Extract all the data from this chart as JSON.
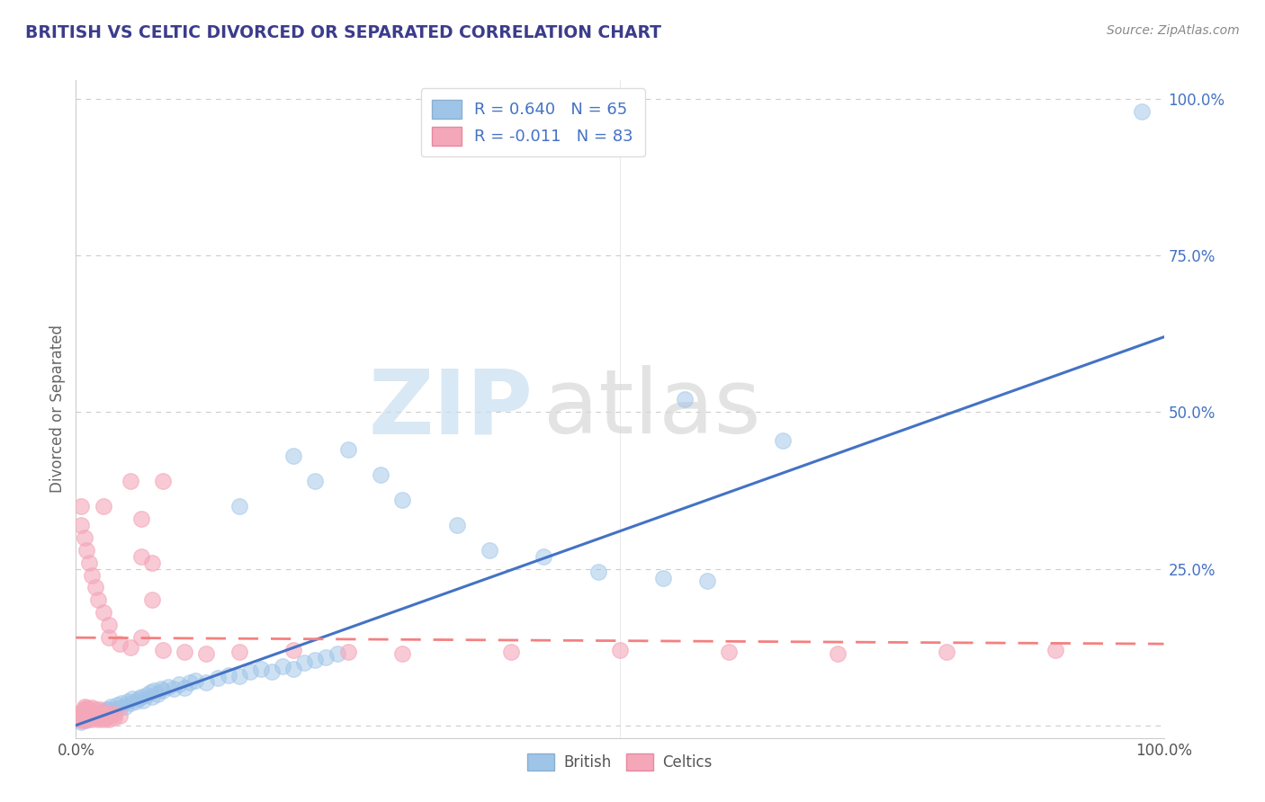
{
  "title": "BRITISH VS CELTIC DIVORCED OR SEPARATED CORRELATION CHART",
  "source": "Source: ZipAtlas.com",
  "ylabel": "Divorced or Separated",
  "title_color": "#3c3c8c",
  "source_color": "#888888",
  "axis_label_color": "#666666",
  "tick_color": "#4472c4",
  "grid_color": "#cccccc",
  "british_color": "#9ec4e8",
  "celtics_color": "#f4a7b9",
  "british_line_color": "#4472c4",
  "celtics_line_color": "#f48080",
  "R_british": 0.64,
  "N_british": 65,
  "R_celtics": -0.011,
  "N_celtics": 83,
  "xlim": [
    0.0,
    1.0
  ],
  "ylim": [
    0.0,
    1.0
  ],
  "ytick_positions": [
    0.0,
    0.25,
    0.5,
    0.75,
    1.0
  ],
  "british_line": [
    0.0,
    0.0,
    1.0,
    0.62
  ],
  "celtics_line": [
    0.0,
    0.14,
    1.0,
    0.13
  ],
  "british_scatter": [
    [
      0.005,
      0.005
    ],
    [
      0.008,
      0.01
    ],
    [
      0.01,
      0.008
    ],
    [
      0.012,
      0.012
    ],
    [
      0.015,
      0.015
    ],
    [
      0.015,
      0.02
    ],
    [
      0.018,
      0.018
    ],
    [
      0.02,
      0.015
    ],
    [
      0.022,
      0.02
    ],
    [
      0.025,
      0.022
    ],
    [
      0.028,
      0.025
    ],
    [
      0.03,
      0.02
    ],
    [
      0.03,
      0.025
    ],
    [
      0.032,
      0.03
    ],
    [
      0.035,
      0.025
    ],
    [
      0.038,
      0.032
    ],
    [
      0.04,
      0.028
    ],
    [
      0.042,
      0.035
    ],
    [
      0.045,
      0.03
    ],
    [
      0.048,
      0.038
    ],
    [
      0.05,
      0.035
    ],
    [
      0.052,
      0.042
    ],
    [
      0.055,
      0.038
    ],
    [
      0.058,
      0.042
    ],
    [
      0.06,
      0.045
    ],
    [
      0.062,
      0.04
    ],
    [
      0.065,
      0.048
    ],
    [
      0.068,
      0.052
    ],
    [
      0.07,
      0.045
    ],
    [
      0.072,
      0.055
    ],
    [
      0.075,
      0.05
    ],
    [
      0.078,
      0.058
    ],
    [
      0.08,
      0.055
    ],
    [
      0.085,
      0.062
    ],
    [
      0.09,
      0.058
    ],
    [
      0.095,
      0.065
    ],
    [
      0.1,
      0.06
    ],
    [
      0.105,
      0.068
    ],
    [
      0.11,
      0.072
    ],
    [
      0.12,
      0.068
    ],
    [
      0.13,
      0.075
    ],
    [
      0.14,
      0.08
    ],
    [
      0.15,
      0.078
    ],
    [
      0.16,
      0.085
    ],
    [
      0.17,
      0.09
    ],
    [
      0.18,
      0.085
    ],
    [
      0.19,
      0.095
    ],
    [
      0.2,
      0.09
    ],
    [
      0.21,
      0.1
    ],
    [
      0.22,
      0.105
    ],
    [
      0.23,
      0.108
    ],
    [
      0.24,
      0.115
    ],
    [
      0.15,
      0.35
    ],
    [
      0.2,
      0.43
    ],
    [
      0.22,
      0.39
    ],
    [
      0.25,
      0.44
    ],
    [
      0.28,
      0.4
    ],
    [
      0.3,
      0.36
    ],
    [
      0.35,
      0.32
    ],
    [
      0.38,
      0.28
    ],
    [
      0.43,
      0.27
    ],
    [
      0.48,
      0.245
    ],
    [
      0.54,
      0.235
    ],
    [
      0.58,
      0.23
    ],
    [
      0.98,
      0.98
    ],
    [
      0.56,
      0.52
    ],
    [
      0.65,
      0.455
    ]
  ],
  "celtics_scatter": [
    [
      0.002,
      0.01
    ],
    [
      0.003,
      0.015
    ],
    [
      0.004,
      0.02
    ],
    [
      0.005,
      0.008
    ],
    [
      0.005,
      0.012
    ],
    [
      0.005,
      0.018
    ],
    [
      0.006,
      0.01
    ],
    [
      0.006,
      0.015
    ],
    [
      0.007,
      0.008
    ],
    [
      0.007,
      0.012
    ],
    [
      0.007,
      0.018
    ],
    [
      0.007,
      0.025
    ],
    [
      0.008,
      0.01
    ],
    [
      0.008,
      0.015
    ],
    [
      0.008,
      0.02
    ],
    [
      0.008,
      0.03
    ],
    [
      0.009,
      0.012
    ],
    [
      0.009,
      0.018
    ],
    [
      0.009,
      0.025
    ],
    [
      0.01,
      0.01
    ],
    [
      0.01,
      0.015
    ],
    [
      0.01,
      0.02
    ],
    [
      0.01,
      0.028
    ],
    [
      0.012,
      0.012
    ],
    [
      0.012,
      0.018
    ],
    [
      0.012,
      0.025
    ],
    [
      0.015,
      0.01
    ],
    [
      0.015,
      0.015
    ],
    [
      0.015,
      0.02
    ],
    [
      0.015,
      0.028
    ],
    [
      0.018,
      0.012
    ],
    [
      0.018,
      0.018
    ],
    [
      0.018,
      0.025
    ],
    [
      0.02,
      0.01
    ],
    [
      0.02,
      0.015
    ],
    [
      0.02,
      0.02
    ],
    [
      0.022,
      0.012
    ],
    [
      0.022,
      0.018
    ],
    [
      0.022,
      0.025
    ],
    [
      0.025,
      0.01
    ],
    [
      0.025,
      0.015
    ],
    [
      0.025,
      0.02
    ],
    [
      0.028,
      0.012
    ],
    [
      0.028,
      0.018
    ],
    [
      0.03,
      0.01
    ],
    [
      0.03,
      0.015
    ],
    [
      0.03,
      0.02
    ],
    [
      0.035,
      0.012
    ],
    [
      0.035,
      0.018
    ],
    [
      0.04,
      0.015
    ],
    [
      0.005,
      0.32
    ],
    [
      0.005,
      0.35
    ],
    [
      0.008,
      0.3
    ],
    [
      0.01,
      0.28
    ],
    [
      0.012,
      0.26
    ],
    [
      0.015,
      0.24
    ],
    [
      0.018,
      0.22
    ],
    [
      0.02,
      0.2
    ],
    [
      0.025,
      0.18
    ],
    [
      0.025,
      0.35
    ],
    [
      0.03,
      0.16
    ],
    [
      0.03,
      0.14
    ],
    [
      0.04,
      0.13
    ],
    [
      0.05,
      0.125
    ],
    [
      0.08,
      0.12
    ],
    [
      0.1,
      0.118
    ],
    [
      0.12,
      0.115
    ],
    [
      0.15,
      0.118
    ],
    [
      0.2,
      0.12
    ],
    [
      0.25,
      0.118
    ],
    [
      0.3,
      0.115
    ],
    [
      0.4,
      0.118
    ],
    [
      0.5,
      0.12
    ],
    [
      0.6,
      0.118
    ],
    [
      0.7,
      0.115
    ],
    [
      0.8,
      0.118
    ],
    [
      0.9,
      0.12
    ],
    [
      0.05,
      0.39
    ],
    [
      0.06,
      0.33
    ],
    [
      0.07,
      0.26
    ],
    [
      0.08,
      0.39
    ],
    [
      0.06,
      0.27
    ],
    [
      0.07,
      0.2
    ],
    [
      0.06,
      0.14
    ]
  ]
}
